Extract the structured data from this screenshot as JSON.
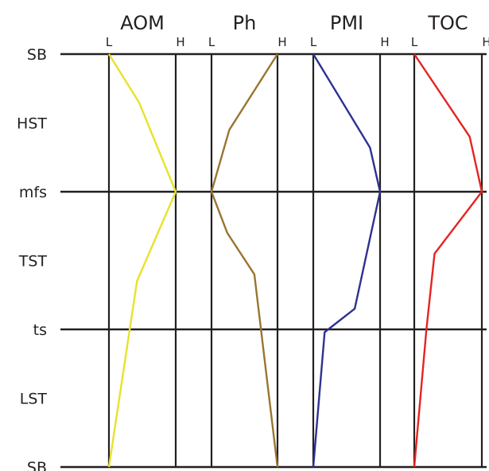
{
  "chart_data": {
    "type": "line",
    "scale_note_low": "L",
    "scale_note_high": "H",
    "y_levels": [
      {
        "label": "SB",
        "pos": 0
      },
      {
        "label": "HST",
        "pos": 0.5
      },
      {
        "label": "mfs",
        "pos": 1
      },
      {
        "label": "TST",
        "pos": 1.5
      },
      {
        "label": "ts",
        "pos": 2
      },
      {
        "label": "LST",
        "pos": 2.5
      },
      {
        "label": "SB",
        "pos": 3
      }
    ],
    "boundaries": [
      {
        "label": "SB",
        "pos": 0
      },
      {
        "label": "mfs",
        "pos": 1
      },
      {
        "label": "ts",
        "pos": 2
      },
      {
        "label": "SB",
        "pos": 3
      }
    ],
    "panels": [
      {
        "title": "AOM",
        "color": "#e8e22a",
        "points": [
          [
            0,
            0
          ],
          [
            0.45,
            0.35
          ],
          [
            1,
            1
          ],
          [
            0.42,
            1.65
          ],
          [
            0,
            3
          ]
        ]
      },
      {
        "title": "Ph",
        "color": "#9a7530",
        "points": [
          [
            1,
            0
          ],
          [
            0.27,
            0.55
          ],
          [
            0,
            1
          ],
          [
            0.24,
            1.3
          ],
          [
            0.65,
            1.6
          ],
          [
            1,
            3
          ]
        ]
      },
      {
        "title": "PMI",
        "color": "#2e3192",
        "points": [
          [
            0,
            0
          ],
          [
            0.85,
            0.68
          ],
          [
            1,
            1
          ],
          [
            0.62,
            1.85
          ],
          [
            0.17,
            2.02
          ],
          [
            0,
            3
          ]
        ]
      },
      {
        "title": "TOC",
        "color": "#e52421",
        "points": [
          [
            0,
            0
          ],
          [
            0.82,
            0.6
          ],
          [
            1,
            1
          ],
          [
            0.3,
            1.45
          ],
          [
            0.18,
            2
          ],
          [
            0,
            3
          ]
        ]
      }
    ]
  }
}
